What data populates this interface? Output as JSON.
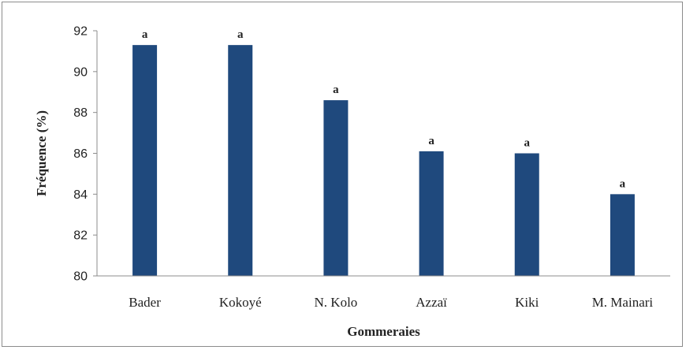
{
  "chart_data": {
    "type": "bar",
    "title": "",
    "xlabel": "Gommeraies",
    "ylabel": "Fréquence (%)",
    "ylim": [
      80,
      92
    ],
    "yticks": [
      80,
      82,
      84,
      86,
      88,
      90,
      92
    ],
    "grid": false,
    "legend": "none",
    "bar_color": "#1F497D",
    "categories": [
      "Bader",
      "Kokoyé",
      "N. Kolo",
      "Azzaï",
      "Kiki",
      "M. Mainari"
    ],
    "values": [
      91.3,
      91.3,
      88.6,
      86.1,
      86.0,
      84.0
    ],
    "data_labels": [
      "a",
      "a",
      "a",
      "a",
      "a",
      "a"
    ]
  }
}
